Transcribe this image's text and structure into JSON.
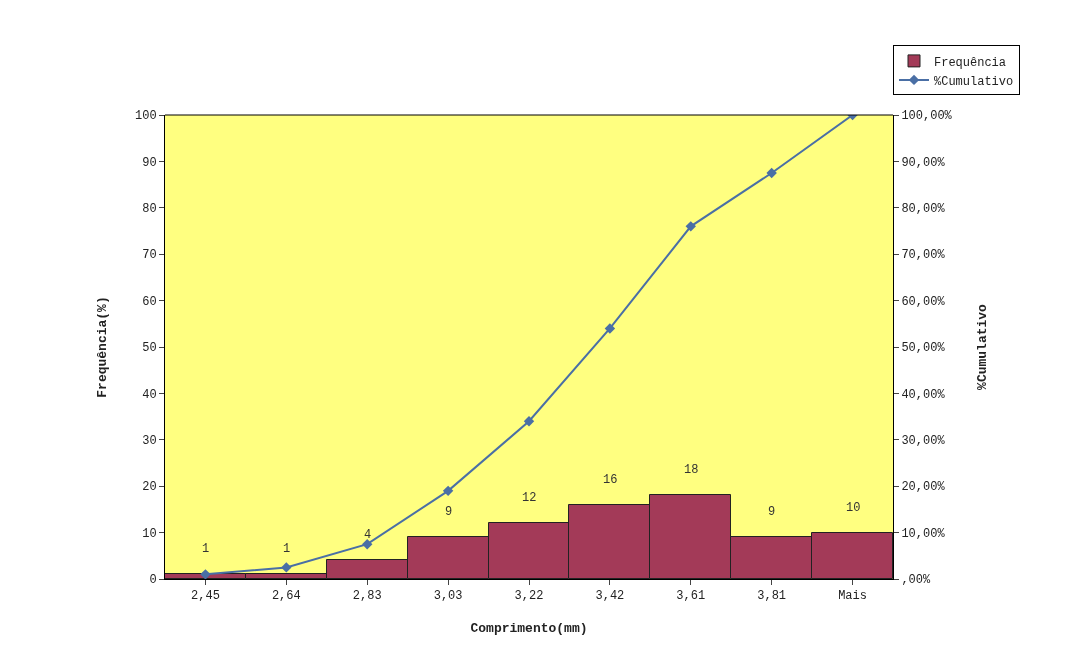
{
  "chart_data": {
    "type": "bar",
    "xlabel": "Comprimento(mm)",
    "ylabel": "Frequência(%)",
    "y2label": "%Cumulativo",
    "categories": [
      "2,45",
      "2,64",
      "2,83",
      "3,03",
      "3,22",
      "3,42",
      "3,61",
      "3,81",
      "Mais"
    ],
    "series": [
      {
        "name": "Frequência",
        "color": "#a33a58",
        "values": [
          1,
          1,
          4,
          9,
          12,
          16,
          18,
          9,
          10
        ],
        "value_labels": [
          "1",
          "1",
          "4",
          "9",
          "12",
          "16",
          "18",
          "9",
          "10"
        ]
      },
      {
        "name": "%Cumulativo",
        "type": "line",
        "axis": "y2",
        "color": "#4a6fa5",
        "marker": "diamond",
        "values": [
          1,
          2.5,
          7.5,
          19,
          34,
          54,
          76,
          87.5,
          100
        ]
      }
    ],
    "ylim": [
      0,
      100
    ],
    "yticks": [
      0,
      10,
      20,
      30,
      40,
      50,
      60,
      70,
      80,
      90,
      100
    ],
    "y2lim": [
      0,
      100
    ],
    "y2ticks": [
      {
        "value": 0,
        "label": ",00%"
      },
      {
        "value": 10,
        "label": "10,00%"
      },
      {
        "value": 20,
        "label": "20,00%"
      },
      {
        "value": 30,
        "label": "30,00%"
      },
      {
        "value": 40,
        "label": "40,00%"
      },
      {
        "value": 50,
        "label": "50,00%"
      },
      {
        "value": 60,
        "label": "60,00%"
      },
      {
        "value": 70,
        "label": "70,00%"
      },
      {
        "value": 80,
        "label": "80,00%"
      },
      {
        "value": 90,
        "label": "90,00%"
      },
      {
        "value": 100,
        "label": "100,00%"
      }
    ],
    "grid": false,
    "legend": "top right"
  }
}
